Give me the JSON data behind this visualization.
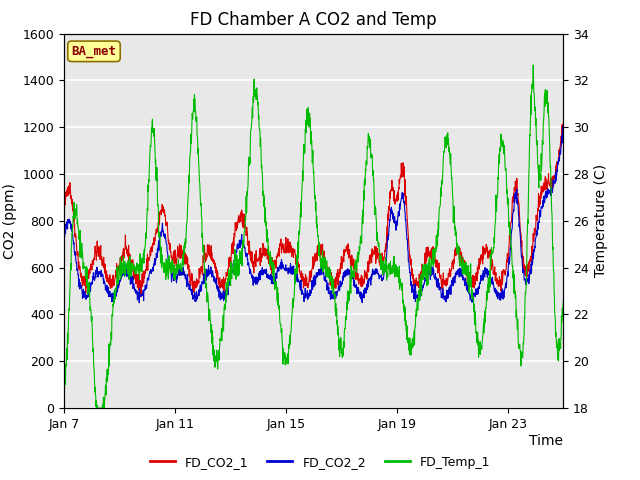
{
  "title": "FD Chamber A CO2 and Temp",
  "xlabel": "Time",
  "ylabel_left": "CO2 (ppm)",
  "ylabel_right": "Temperature (C)",
  "ylim_left": [
    0,
    1600
  ],
  "ylim_right": [
    18,
    34
  ],
  "yticks_left": [
    0,
    200,
    400,
    600,
    800,
    1000,
    1200,
    1400,
    1600
  ],
  "yticks_right": [
    18,
    20,
    22,
    24,
    26,
    28,
    30,
    32,
    34
  ],
  "xtick_labels": [
    "Jan 7",
    "Jan 11",
    "Jan 15",
    "Jan 19",
    "Jan 23"
  ],
  "xtick_positions": [
    0,
    4,
    8,
    12,
    16
  ],
  "xlim": [
    0,
    18
  ],
  "legend_labels": [
    "FD_CO2_1",
    "FD_CO2_2",
    "FD_Temp_1"
  ],
  "legend_colors": [
    "#dd0000",
    "#0000cc",
    "#00bb00"
  ],
  "line_colors": [
    "#dd0000",
    "#0000cc",
    "#00bb00"
  ],
  "annotation_text": "BA_met",
  "annotation_color": "#8b0000",
  "annotation_bg": "#ffff99",
  "annotation_border": "#8b7000",
  "background_color": "#e8e8e8",
  "title_fontsize": 12,
  "axis_fontsize": 10,
  "tick_fontsize": 9,
  "line_width": 0.8
}
